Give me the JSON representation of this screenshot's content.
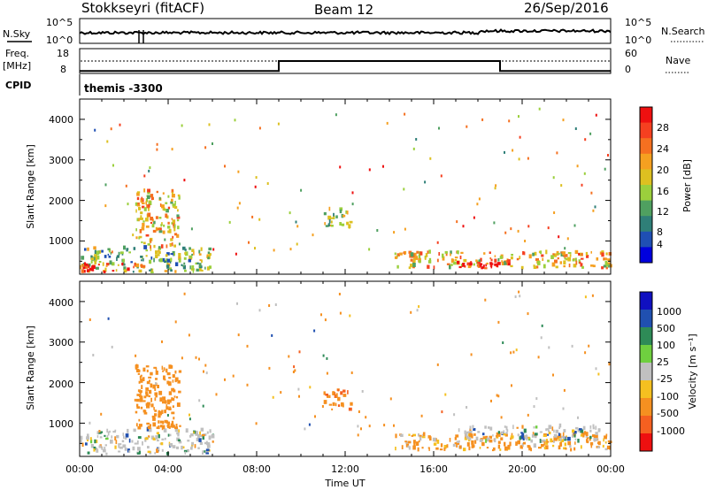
{
  "header": {
    "title": "Stokkseyri (fitACF)",
    "beam": "Beam 12",
    "date": "26/Sep/2016"
  },
  "strip_top": {
    "left_label": "N.Sky",
    "right_label": "N.Search",
    "left_ticks": [
      "10^5",
      "10^0"
    ],
    "right_ticks": [
      "10^5",
      "10^0"
    ]
  },
  "strip_freq": {
    "left_label_line1": "Freq.",
    "left_label_line2": "[MHz]",
    "right_label": "Nave",
    "left_ticks": [
      "18",
      "8"
    ],
    "right_ticks": [
      "60",
      "0"
    ]
  },
  "cpid": {
    "label": "CPID",
    "value": "themis -3300"
  },
  "power_panel": {
    "ylabel": "Slant Range [km]",
    "yticks": [
      "4000",
      "3000",
      "2000",
      "1000"
    ],
    "colorbar_label": "Power [dB]",
    "colorbar_ticks": [
      "28",
      "24",
      "20",
      "16",
      "12",
      "8",
      "4"
    ],
    "colors": [
      "#0000dd",
      "#1f4fb4",
      "#2f7f78",
      "#4fa060",
      "#9bcf3c",
      "#ddc020",
      "#f5a020",
      "#f57020",
      "#f54020",
      "#ee1010"
    ]
  },
  "velocity_panel": {
    "ylabel": "Slant Range [km]",
    "yticks": [
      "4000",
      "3000",
      "2000",
      "1000"
    ],
    "colorbar_label": "Velocity [m s⁻¹]",
    "colorbar_ticks": [
      "1000",
      "500",
      "100",
      "25",
      "-25",
      "-100",
      "-500",
      "-1000"
    ],
    "colors": [
      "#1010c0",
      "#2050b0",
      "#2e8b57",
      "#6fcf3f",
      "#c0c0c0",
      "#f5c020",
      "#f59020",
      "#f56020",
      "#ee1010"
    ]
  },
  "xaxis": {
    "xlabel": "Time UT",
    "ticks": [
      "00:00",
      "04:00",
      "08:00",
      "12:00",
      "16:00",
      "20:00",
      "00:00"
    ]
  },
  "chart_data": [
    {
      "type": "heatmap",
      "title": "Stokkseyri (fitACF) Beam 12 26/Sep/2016",
      "panel": "power",
      "xlabel": "Time UT",
      "ylabel": "Slant Range [km]",
      "xlim": [
        "00:00",
        "24:00"
      ],
      "ylim": [
        180,
        4500
      ],
      "colorbar": {
        "label": "Power [dB]",
        "range": [
          0,
          30
        ]
      },
      "regions": [
        {
          "t_start": 0.0,
          "t_end": 6.0,
          "range_start": 200,
          "range_end": 800,
          "value": 12
        },
        {
          "t_start": 0.0,
          "t_end": 3.0,
          "range_start": 200,
          "range_end": 400,
          "value": 26
        },
        {
          "t_start": 2.5,
          "t_end": 4.5,
          "range_start": 800,
          "range_end": 2200,
          "value": 18
        },
        {
          "t_start": 11.0,
          "t_end": 12.2,
          "range_start": 1300,
          "range_end": 1800,
          "value": 14
        },
        {
          "t_start": 14.2,
          "t_end": 24.0,
          "range_start": 300,
          "range_end": 700,
          "value": 18
        },
        {
          "t_start": 16.5,
          "t_end": 19.5,
          "range_start": 300,
          "range_end": 500,
          "value": 26
        }
      ]
    },
    {
      "type": "heatmap",
      "panel": "velocity",
      "xlabel": "Time UT",
      "ylabel": "Slant Range [km]",
      "xlim": [
        "00:00",
        "24:00"
      ],
      "ylim": [
        180,
        4500
      ],
      "colorbar": {
        "label": "Velocity [m s-1]",
        "range": [
          -1000,
          1000
        ]
      },
      "regions": [
        {
          "t_start": 0.0,
          "t_end": 6.0,
          "range_start": 200,
          "range_end": 800,
          "value": 0
        },
        {
          "t_start": 2.5,
          "t_end": 4.5,
          "range_start": 800,
          "range_end": 2400,
          "value": -300
        },
        {
          "t_start": 11.0,
          "t_end": 12.3,
          "range_start": 1300,
          "range_end": 1800,
          "value": -400
        },
        {
          "t_start": 14.2,
          "t_end": 24.0,
          "range_start": 300,
          "range_end": 700,
          "value": -150
        },
        {
          "t_start": 17.0,
          "t_end": 23.5,
          "range_start": 500,
          "range_end": 900,
          "value": 0
        }
      ]
    },
    {
      "type": "line",
      "panel": "frequency",
      "ylabel": "Freq. [MHz]",
      "ylim": [
        8,
        18
      ],
      "series": [
        {
          "name": "Freq.",
          "x": [
            "00:00",
            "09:00",
            "09:00",
            "19:00",
            "19:00",
            "24:00"
          ],
          "values": [
            9,
            9,
            13,
            13,
            9,
            9
          ]
        }
      ]
    }
  ]
}
